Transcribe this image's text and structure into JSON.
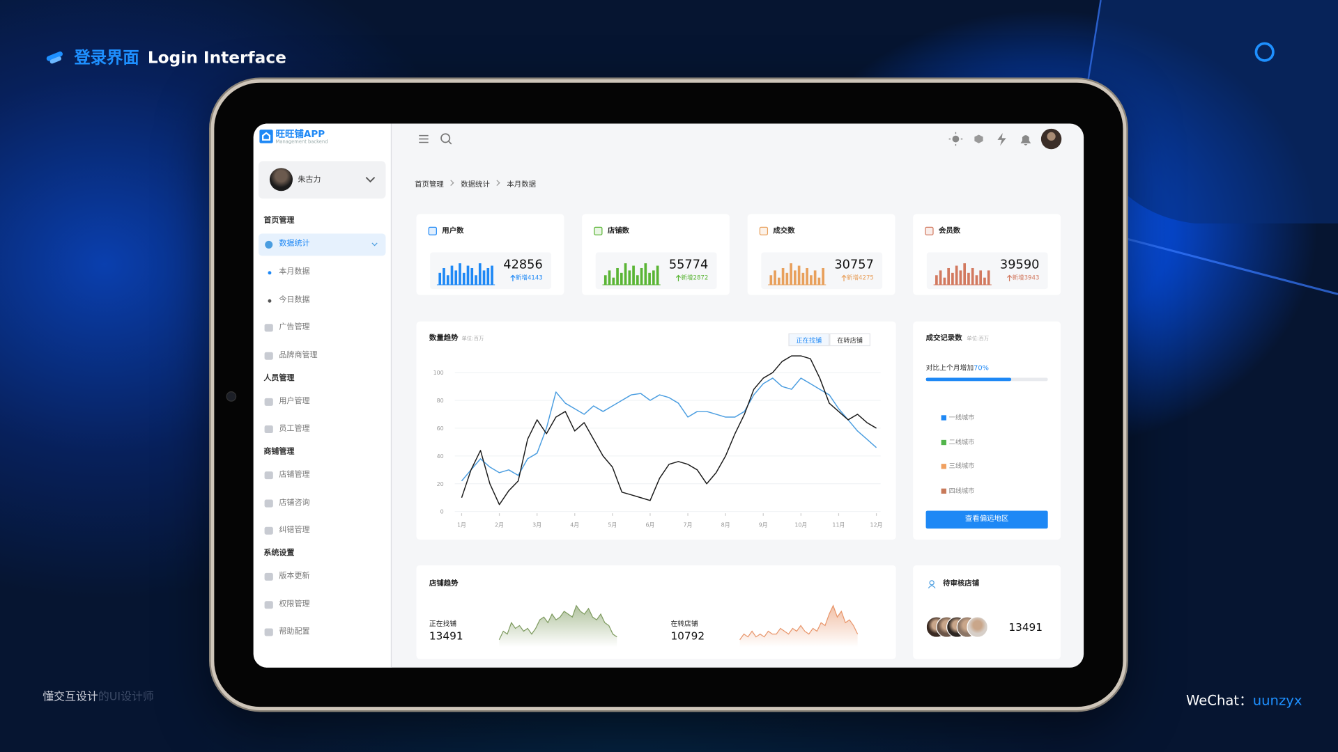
{
  "header": {
    "title_cn": "登录界面",
    "title_en": "Login Interface"
  },
  "footer": {
    "left_bold": "懂交互设计",
    "left_dim": "的UI设计师",
    "wechat_label": "WeChat：",
    "wechat_id": "uunzyx"
  },
  "app": {
    "logo": {
      "name": "旺旺铺APP",
      "subtitle": "Management backend"
    },
    "user": "朱古力",
    "sidebar": [
      {
        "group": "首页管理",
        "items": [
          {
            "label": "数据统计",
            "children": [
              "本月数据",
              "今日数据"
            ]
          },
          {
            "label": "广告管理"
          },
          {
            "label": "品牌商管理"
          }
        ]
      },
      {
        "group": "人员管理",
        "items": [
          {
            "label": "用户管理"
          },
          {
            "label": "员工管理"
          }
        ]
      },
      {
        "group": "商铺管理",
        "items": [
          {
            "label": "店铺管理"
          },
          {
            "label": "店铺咨询"
          },
          {
            "label": "纠错管理"
          }
        ]
      },
      {
        "group": "系统设置",
        "items": [
          {
            "label": "版本更新"
          },
          {
            "label": "权限管理"
          },
          {
            "label": "帮助配置"
          }
        ]
      }
    ],
    "breadcrumb": [
      "首页管理",
      "数据统计",
      "本月数据"
    ],
    "stats": [
      {
        "label": "用户数",
        "value": 42856,
        "delta": "新增4143",
        "color": "#1e88f5",
        "bars": [
          5,
          7,
          4,
          8,
          6,
          9,
          5,
          8,
          7,
          4,
          9,
          6,
          7,
          8
        ]
      },
      {
        "label": "店铺数",
        "value": 55774,
        "delta": "新增2872",
        "color": "#5ab535",
        "bars": [
          4,
          6,
          3,
          7,
          5,
          9,
          6,
          8,
          4,
          7,
          9,
          5,
          6,
          8
        ]
      },
      {
        "label": "成交数",
        "value": 30757,
        "delta": "新增4275",
        "color": "#e8a05c",
        "bars": [
          4,
          6,
          3,
          7,
          5,
          9,
          6,
          8,
          5,
          7,
          4,
          6,
          3,
          7
        ]
      },
      {
        "label": "会员数",
        "value": 39590,
        "delta": "新增3943",
        "color": "#d2795f",
        "bars": [
          4,
          6,
          3,
          7,
          5,
          8,
          6,
          9,
          5,
          7,
          4,
          6,
          3,
          6
        ]
      }
    ],
    "trend": {
      "type": "line",
      "title": "数量趋势",
      "unit": "单位:百万",
      "tabs": [
        "正在找铺",
        "在转店铺"
      ],
      "xlim": [
        1,
        12
      ],
      "xticks": [
        {
          "value": 1,
          "label": "1月"
        },
        {
          "value": 2,
          "label": "2月"
        },
        {
          "value": 3,
          "label": "3月"
        },
        {
          "value": 4,
          "label": "4月"
        },
        {
          "value": 5,
          "label": "5月"
        },
        {
          "value": 6,
          "label": "6月"
        },
        {
          "value": 7,
          "label": "7月"
        },
        {
          "value": 8,
          "label": "8月"
        },
        {
          "value": 9,
          "label": "9月"
        },
        {
          "value": 10,
          "label": "10月"
        },
        {
          "value": 11,
          "label": "11月"
        },
        {
          "value": 12,
          "label": "12月"
        }
      ],
      "ylim": [
        0,
        100
      ],
      "yticks": [
        0,
        20,
        40,
        60,
        80,
        100
      ],
      "grid": true,
      "x": [
        1,
        1.25,
        1.5,
        1.75,
        2,
        2.25,
        2.5,
        2.75,
        3,
        3.25,
        3.5,
        3.75,
        4,
        4.25,
        4.5,
        4.75,
        5,
        5.25,
        5.5,
        5.75,
        6,
        6.25,
        6.5,
        6.75,
        7,
        7.25,
        7.5,
        7.75,
        8,
        8.25,
        8.5,
        8.75,
        9,
        9.25,
        9.5,
        9.75,
        10,
        10.25,
        10.5,
        10.75,
        11,
        11.25,
        11.5,
        11.75,
        12
      ],
      "series": [
        {
          "color": "#4a9de0",
          "values": [
            22,
            30,
            38,
            32,
            28,
            30,
            26,
            38,
            42,
            60,
            86,
            78,
            74,
            70,
            76,
            72,
            76,
            80,
            84,
            85,
            80,
            84,
            82,
            78,
            68,
            72,
            72,
            70,
            68,
            68,
            72,
            84,
            92,
            96,
            90,
            88,
            96,
            92,
            88,
            84,
            74,
            66,
            58,
            52,
            46
          ]
        },
        {
          "color": "#1a1a1a",
          "values": [
            10,
            30,
            44,
            20,
            5,
            15,
            22,
            52,
            66,
            56,
            68,
            72,
            58,
            64,
            52,
            40,
            32,
            14,
            12,
            10,
            8,
            24,
            34,
            36,
            34,
            30,
            20,
            28,
            40,
            56,
            70,
            88,
            96,
            100,
            108,
            112,
            112,
            110,
            96,
            78,
            72,
            66,
            70,
            64,
            60
          ]
        }
      ]
    },
    "record": {
      "title": "成交记录数",
      "unit": "单位:百万",
      "compare_label": "对比上个月增加",
      "compare": {
        "value": 70,
        "label": "70%"
      },
      "legend": [
        {
          "name": "一线城市",
          "color": "#1e88f5"
        },
        {
          "name": "二线城市",
          "color": "#52b54b"
        },
        {
          "name": "三线城市",
          "color": "#f0a060"
        },
        {
          "name": "四线城市",
          "color": "#c87a5a"
        }
      ],
      "button": "查看偏远地区"
    },
    "shop_trend": {
      "title": "店铺趋势",
      "items": [
        {
          "label": "正在找铺",
          "value": 13491,
          "color": "#7d9a5e",
          "values": [
            2,
            5,
            4,
            8,
            6,
            7,
            5,
            6,
            4,
            6,
            9,
            10,
            8,
            11,
            9,
            10,
            12,
            11,
            10,
            14,
            12,
            11,
            13,
            10,
            9,
            11,
            8,
            7,
            4,
            3
          ]
        },
        {
          "label": "在转店铺",
          "value": 10792,
          "color": "#e8956a",
          "values": [
            2,
            4,
            3,
            5,
            3,
            4,
            3,
            5,
            4,
            4,
            6,
            5,
            4,
            6,
            5,
            7,
            5,
            4,
            6,
            5,
            8,
            7,
            11,
            14,
            10,
            12,
            8,
            9,
            7,
            4
          ]
        }
      ]
    },
    "pending": {
      "title": "待审核店铺",
      "value": 13491
    }
  }
}
